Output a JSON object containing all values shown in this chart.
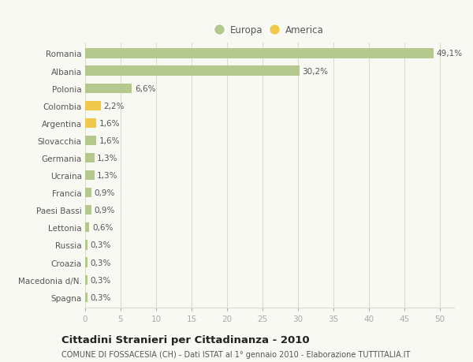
{
  "categories": [
    "Romania",
    "Albania",
    "Polonia",
    "Colombia",
    "Argentina",
    "Slovacchia",
    "Germania",
    "Ucraina",
    "Francia",
    "Paesi Bassi",
    "Lettonia",
    "Russia",
    "Croazia",
    "Macedonia d/N.",
    "Spagna"
  ],
  "values": [
    49.1,
    30.2,
    6.6,
    2.2,
    1.6,
    1.6,
    1.3,
    1.3,
    0.9,
    0.9,
    0.6,
    0.3,
    0.3,
    0.3,
    0.3
  ],
  "labels": [
    "49,1%",
    "30,2%",
    "6,6%",
    "2,2%",
    "1,6%",
    "1,6%",
    "1,3%",
    "1,3%",
    "0,9%",
    "0,9%",
    "0,6%",
    "0,3%",
    "0,3%",
    "0,3%",
    "0,3%"
  ],
  "colors": [
    "#b5c98e",
    "#b5c98e",
    "#b5c98e",
    "#f0c84a",
    "#f0c84a",
    "#b5c98e",
    "#b5c98e",
    "#b5c98e",
    "#b5c98e",
    "#b5c98e",
    "#b5c98e",
    "#b5c98e",
    "#b5c98e",
    "#b5c98e",
    "#b5c98e"
  ],
  "europa_color": "#b5c98e",
  "america_color": "#f0c84a",
  "xlim": [
    0,
    52
  ],
  "xticks": [
    0,
    5,
    10,
    15,
    20,
    25,
    30,
    35,
    40,
    45,
    50
  ],
  "title": "Cittadini Stranieri per Cittadinanza - 2010",
  "subtitle": "COMUNE DI FOSSACESIA (CH) - Dati ISTAT al 1° gennaio 2010 - Elaborazione TUTTITALIA.IT",
  "background_color": "#f9f9f4",
  "grid_color": "#ddddcc",
  "bar_height": 0.55,
  "label_fontsize": 7.5,
  "tick_fontsize": 7.5,
  "title_fontsize": 9.5,
  "subtitle_fontsize": 7.0,
  "legend_fontsize": 8.5
}
